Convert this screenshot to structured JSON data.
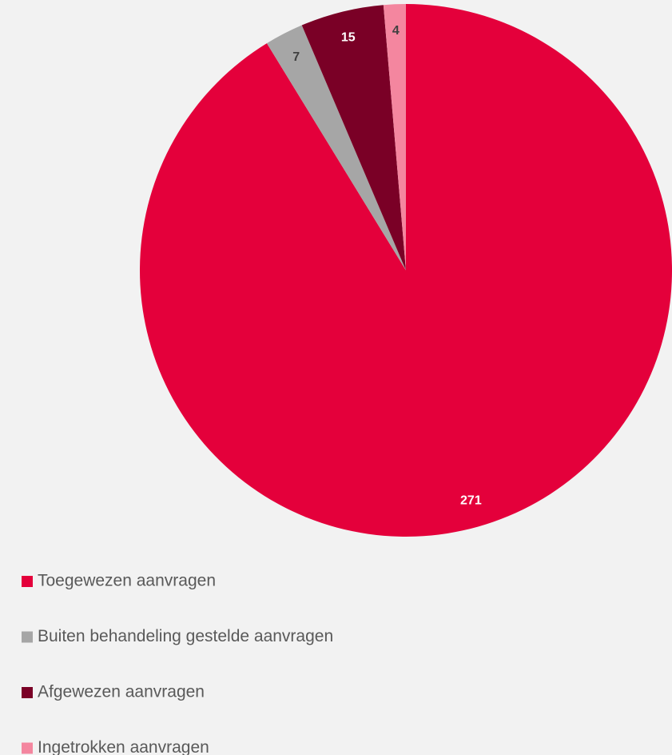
{
  "chart_data": {
    "type": "pie",
    "categories": [
      "Toegewezen aanvragen",
      "Buiten behandeling gestelde aanvragen",
      "Afgewezen aanvragen",
      "Ingetrokken aanvragen"
    ],
    "values": [
      271,
      7,
      15,
      4
    ],
    "colors": [
      "#e4003b",
      "#a6a6a6",
      "#7a0026",
      "#f4869f"
    ],
    "label_colors": [
      "#ffffff",
      "#404040",
      "#ffffff",
      "#404040"
    ],
    "legend": "bottom-left"
  }
}
